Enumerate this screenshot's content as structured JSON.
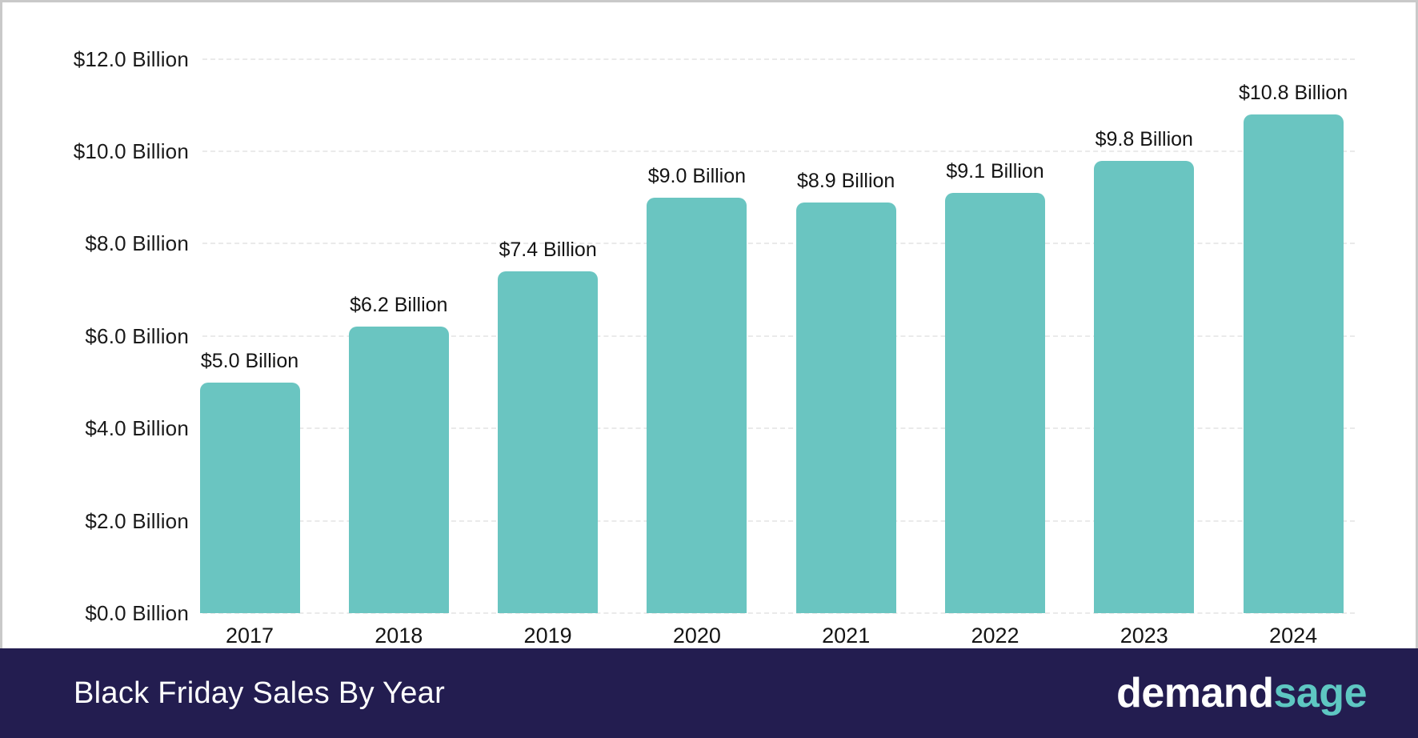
{
  "chart_data": {
    "type": "bar",
    "title": "Black Friday Sales By Year",
    "categories": [
      "2017",
      "2018",
      "2019",
      "2020",
      "2021",
      "2022",
      "2023",
      "2024"
    ],
    "values": [
      5.0,
      6.2,
      7.4,
      9.0,
      8.9,
      9.1,
      9.8,
      10.8
    ],
    "bar_labels": [
      "$5.0 Billion",
      "$6.2 Billion",
      "$7.4 Billion",
      "$9.0 Billion",
      "$8.9 Billion",
      "$9.1 Billion",
      "$9.8 Billion",
      "$10.8 Billion"
    ],
    "y_ticks": [
      {
        "value": 0,
        "label": "$0.0 Billion"
      },
      {
        "value": 2,
        "label": "$2.0 Billion"
      },
      {
        "value": 4,
        "label": "$4.0 Billion"
      },
      {
        "value": 6,
        "label": "$6.0 Billion"
      },
      {
        "value": 8,
        "label": "$8.0 Billion"
      },
      {
        "value": 10,
        "label": "$10.0 Billion"
      },
      {
        "value": 12,
        "label": "$12.0 Billion"
      }
    ],
    "ylim": [
      0,
      12
    ],
    "xlabel": "",
    "ylabel": "",
    "grid": true,
    "legend_position": "none",
    "bar_color": "#6ac5c1"
  },
  "branding": {
    "logo_part1": "demand",
    "logo_part2": "sage",
    "logo_sage_color": "#5ec7c2"
  },
  "colors": {
    "footer_bg": "#231d50",
    "bar": "#6ac5c1",
    "grid_line": "#eaeaea",
    "card_border": "#c9c9c9",
    "text": "#141414",
    "title_text": "#ffffff"
  }
}
